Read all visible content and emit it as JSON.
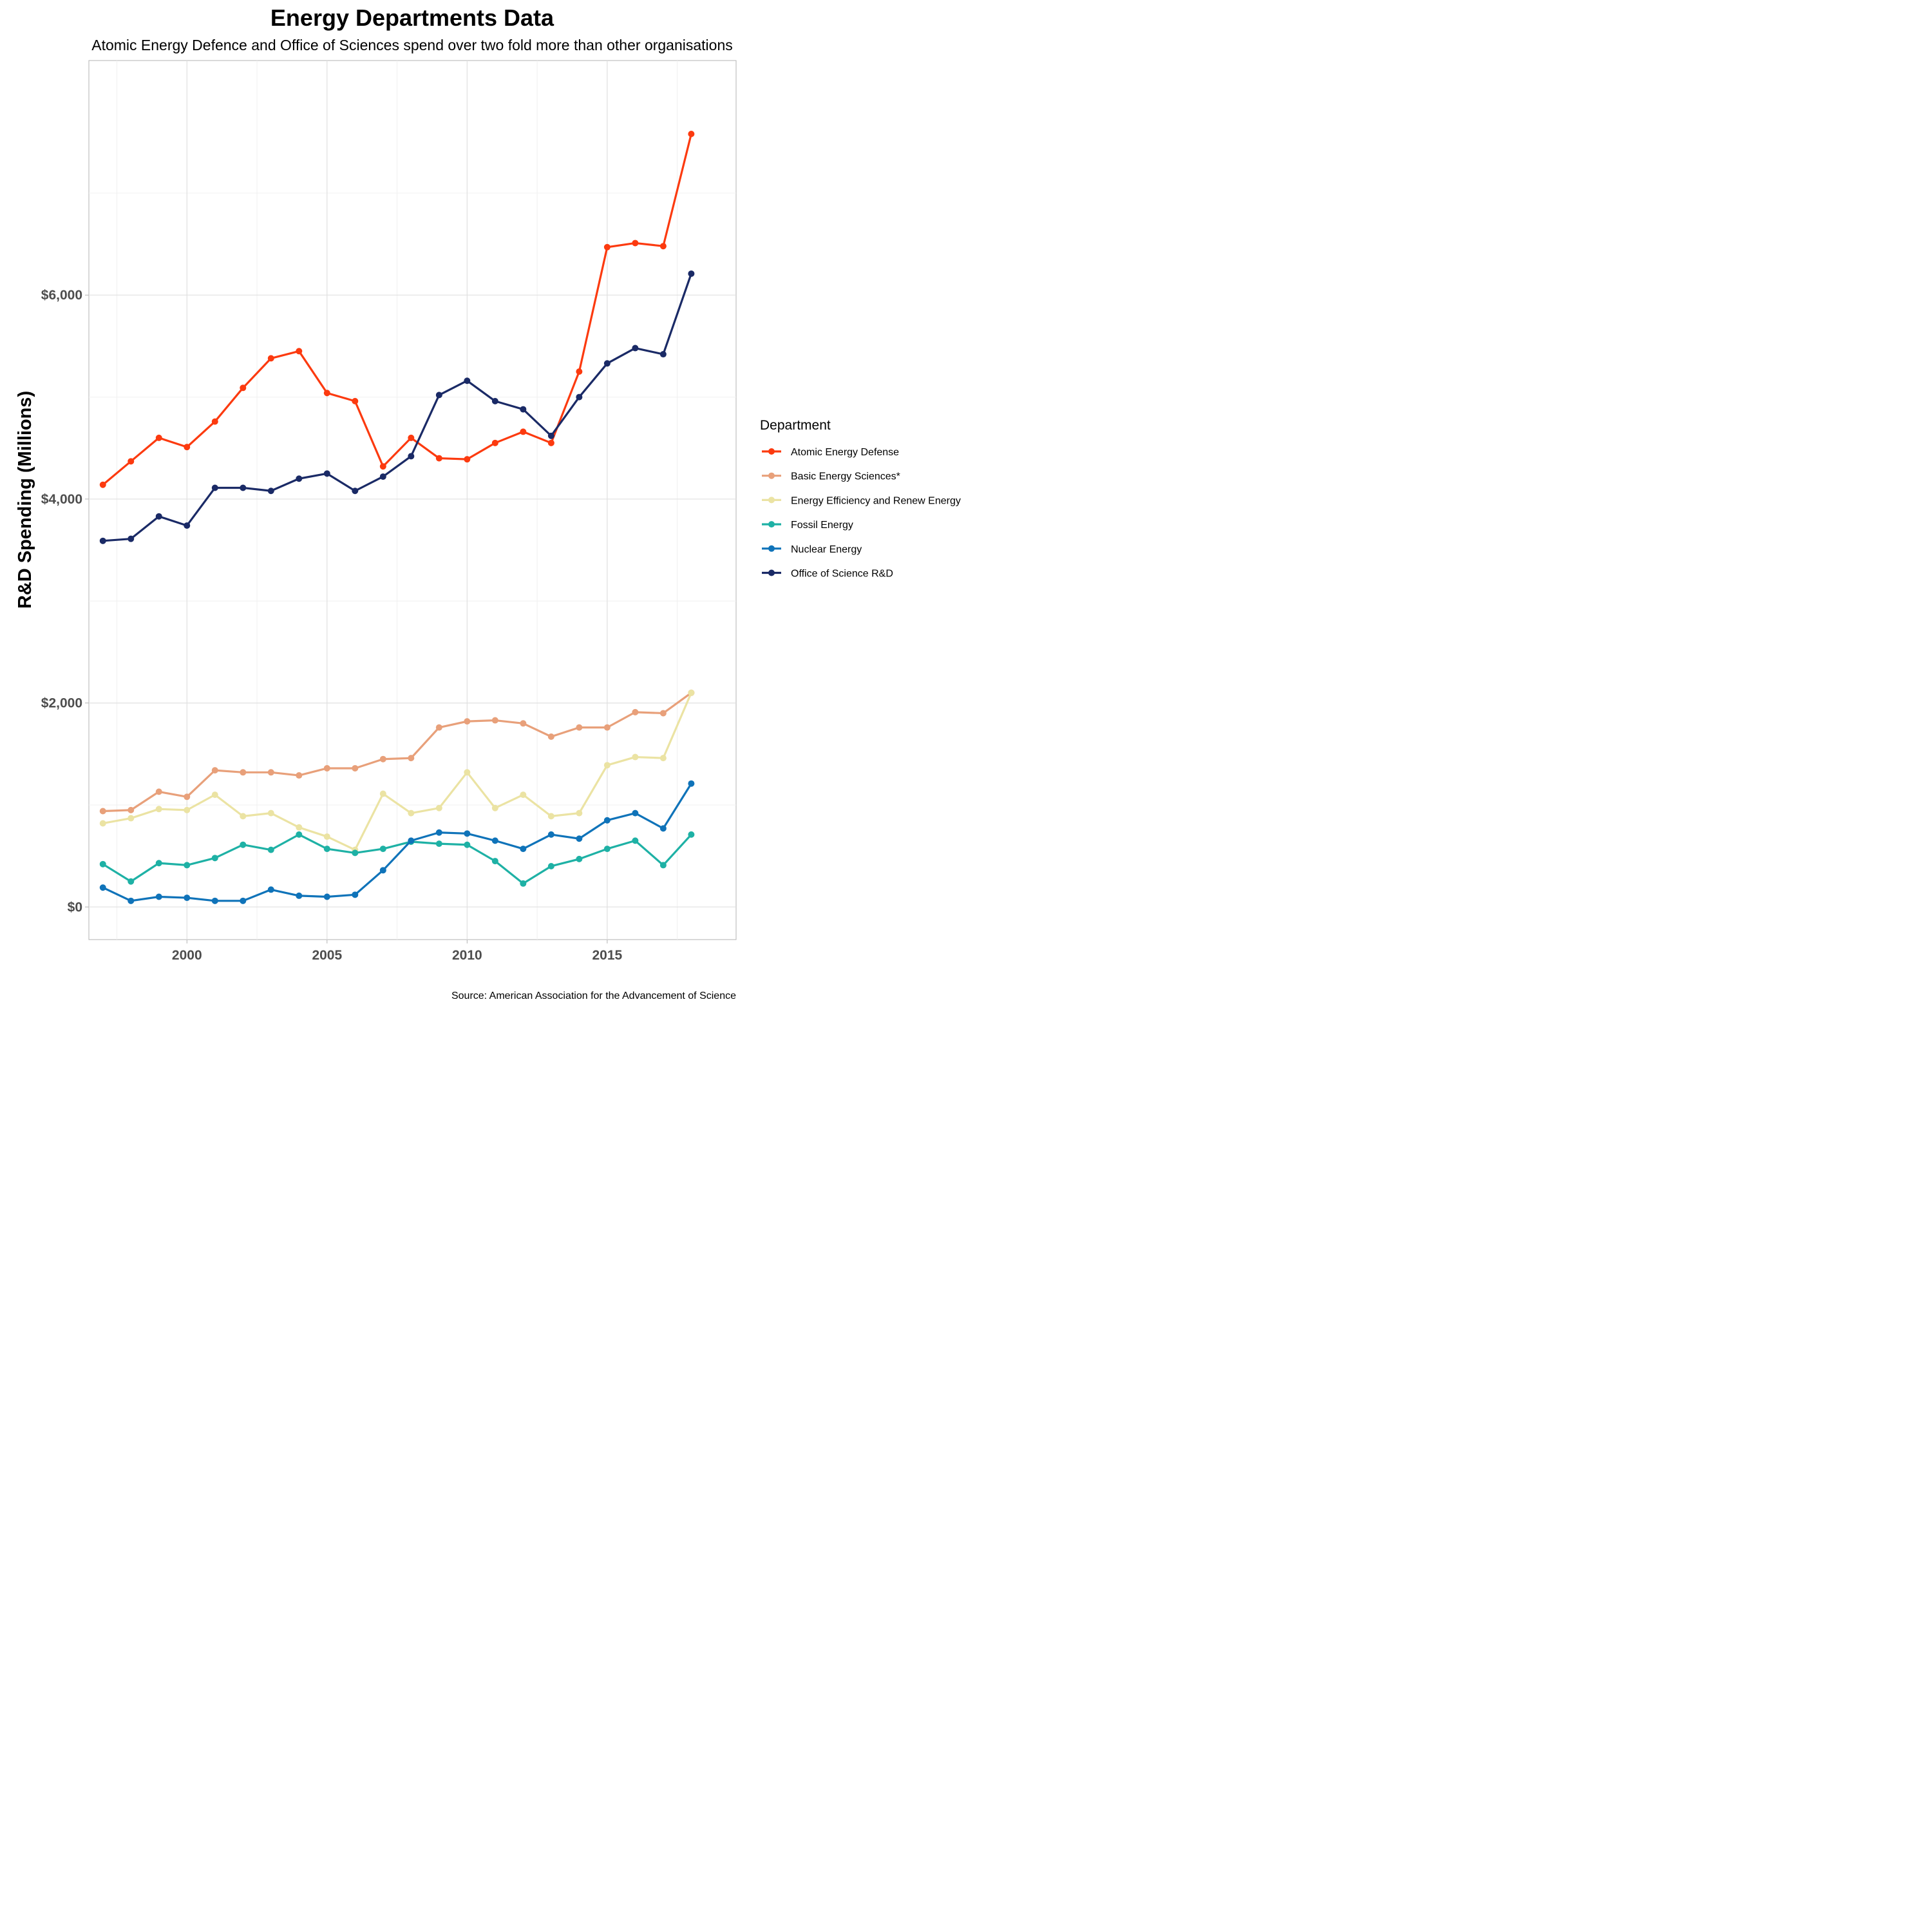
{
  "chart_data": {
    "type": "line",
    "title": "Energy Departments Data",
    "subtitle": "Atomic Energy Defence and Office of Sciences spend over two fold more than other organisations",
    "xlabel": "",
    "ylabel": "R&D Spending (Millions)",
    "caption": "Source: American Association for the Advancement of Science",
    "legend_title": "Department",
    "legend_position": "right",
    "xlim": [
      1996.5,
      2019.6
    ],
    "ylim": [
      -320,
      8300
    ],
    "x_ticks": [
      2000,
      2005,
      2010,
      2015
    ],
    "x_tick_labels": [
      "2000",
      "2005",
      "2010",
      "2015"
    ],
    "y_ticks": [
      0,
      2000,
      4000,
      6000
    ],
    "y_tick_labels": [
      "$0",
      "$2,000",
      "$4,000",
      "$6,000"
    ],
    "x": [
      1997,
      1998,
      1999,
      2000,
      2001,
      2002,
      2003,
      2004,
      2005,
      2006,
      2007,
      2008,
      2009,
      2010,
      2011,
      2012,
      2013,
      2014,
      2015,
      2016,
      2017,
      2018
    ],
    "series": [
      {
        "name": "Atomic Energy Defense",
        "color": "#fc3a0f",
        "values": [
          4140,
          4370,
          4600,
          4510,
          4760,
          5090,
          5380,
          5450,
          5040,
          4960,
          4320,
          4600,
          4400,
          4390,
          4550,
          4660,
          4550,
          5250,
          6470,
          6510,
          6480,
          7580
        ]
      },
      {
        "name": "Basic Energy Sciences*",
        "color": "#e8a07a",
        "values": [
          940,
          950,
          1130,
          1080,
          1340,
          1320,
          1320,
          1290,
          1360,
          1360,
          1450,
          1460,
          1760,
          1820,
          1830,
          1800,
          1670,
          1760,
          1760,
          1910,
          1900,
          2100
        ]
      },
      {
        "name": "Energy Efficiency and Renew Energy",
        "color": "#ebe3a3",
        "values": [
          820,
          870,
          960,
          950,
          1100,
          890,
          920,
          780,
          690,
          560,
          1110,
          920,
          970,
          1320,
          970,
          1100,
          890,
          920,
          1390,
          1470,
          1460,
          2100
        ]
      },
      {
        "name": "Fossil Energy",
        "color": "#1eb1a5",
        "values": [
          420,
          250,
          430,
          410,
          480,
          610,
          560,
          710,
          570,
          530,
          570,
          640,
          620,
          610,
          450,
          230,
          400,
          470,
          570,
          650,
          410,
          710
        ]
      },
      {
        "name": "Nuclear Energy",
        "color": "#0f73b9",
        "values": [
          190,
          60,
          100,
          90,
          60,
          60,
          170,
          110,
          100,
          120,
          360,
          650,
          730,
          720,
          650,
          570,
          710,
          670,
          850,
          920,
          770,
          1210
        ]
      },
      {
        "name": "Office of Science R&D",
        "color": "#1a2a66",
        "values": [
          3590,
          3610,
          3830,
          3740,
          4110,
          4110,
          4080,
          4200,
          4250,
          4080,
          4220,
          4420,
          5020,
          5160,
          4960,
          4880,
          4620,
          5000,
          5330,
          5480,
          5420,
          6210
        ]
      }
    ]
  }
}
